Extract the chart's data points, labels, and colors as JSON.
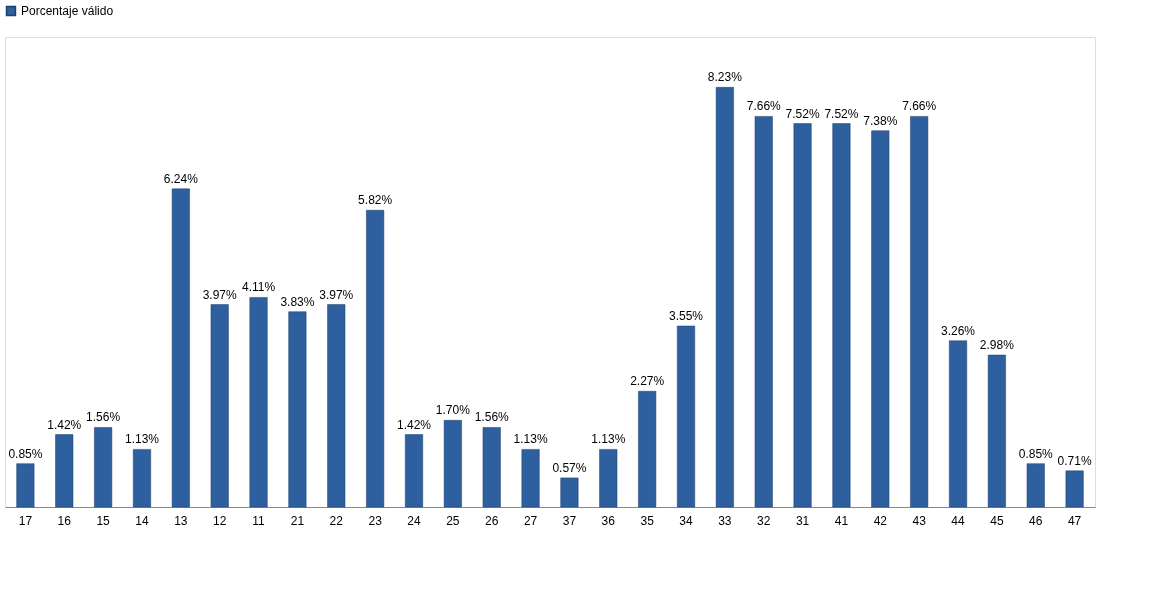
{
  "chart_data": {
    "type": "bar",
    "categories": [
      "17",
      "16",
      "15",
      "14",
      "13",
      "12",
      "11",
      "21",
      "22",
      "23",
      "24",
      "25",
      "26",
      "27",
      "37",
      "36",
      "35",
      "34",
      "33",
      "32",
      "31",
      "41",
      "42",
      "43",
      "44",
      "45",
      "46",
      "47"
    ],
    "series": [
      {
        "name": "Porcentaje válido",
        "color": "#2e5f9e",
        "values": [
          0.85,
          1.42,
          1.56,
          1.13,
          6.24,
          3.97,
          4.11,
          3.83,
          3.97,
          5.82,
          1.42,
          1.7,
          1.56,
          1.13,
          0.57,
          1.13,
          2.27,
          3.55,
          8.23,
          7.66,
          7.52,
          7.52,
          7.38,
          7.66,
          3.26,
          2.98,
          0.85,
          0.71
        ],
        "value_labels": [
          "0.85%",
          "1.42%",
          "1.56%",
          "1.13%",
          "6.24%",
          "3.97%",
          "4.11%",
          "3.83%",
          "3.97%",
          "5.82%",
          "1.42%",
          "1.70%",
          "1.56%",
          "1.13%",
          "0.57%",
          "1.13%",
          "2.27%",
          "3.55%",
          "8.23%",
          "7.66%",
          "7.52%",
          "7.52%",
          "7.38%",
          "7.66%",
          "3.26%",
          "2.98%",
          "0.85%",
          "0.71%"
        ]
      }
    ],
    "legend": "top",
    "grid": false
  }
}
